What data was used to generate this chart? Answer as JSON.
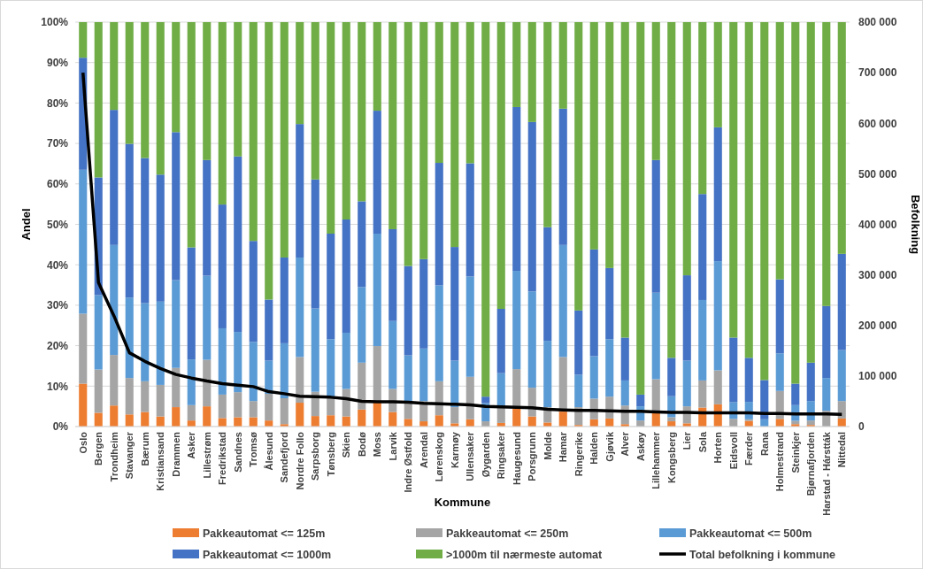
{
  "chart_data": {
    "type": "bar",
    "stacked": true,
    "xlabel": "Kommune",
    "ylabel": "Andel",
    "y2label": "Befolkning",
    "grid": "y",
    "legend": "bottom",
    "marker": "none",
    "line_style": "solid",
    "categories": [
      "Oslo",
      "Bergen",
      "Trondheim",
      "Stavanger",
      "Bærum",
      "Kristiansand",
      "Drammen",
      "Asker",
      "Lillestrøm",
      "Fredrikstad",
      "Sandnes",
      "Tromsø",
      "Ålesund",
      "Sandefjord",
      "Nordre Follo",
      "Sarpsborg",
      "Tønsberg",
      "Skien",
      "Bodø",
      "Moss",
      "Larvik",
      "Indre Østfold",
      "Arendal",
      "Lørenskog",
      "Karmøy",
      "Ullensaker",
      "Øygarden",
      "Ringsaker",
      "Haugesund",
      "Porsgrunn",
      "Molde",
      "Hamar",
      "Ringerike",
      "Halden",
      "Gjøvik",
      "Alver",
      "Askøy",
      "Lillehammer",
      "Kongsberg",
      "Lier",
      "Sola",
      "Horten",
      "Eidsvoll",
      "Færder",
      "Rana",
      "Holmestrand",
      "Steinkjer",
      "Bjørnafjorden",
      "Harstad - Hárstták",
      "Nittedal"
    ],
    "ylim": [
      0,
      100
    ],
    "yticks": [
      {
        "value": 0,
        "label": "0%"
      },
      {
        "value": 10,
        "label": "10%"
      },
      {
        "value": 20,
        "label": "20%"
      },
      {
        "value": 30,
        "label": "30%"
      },
      {
        "value": 40,
        "label": "40%"
      },
      {
        "value": 50,
        "label": "50%"
      },
      {
        "value": 60,
        "label": "60%"
      },
      {
        "value": 70,
        "label": "70%"
      },
      {
        "value": 80,
        "label": "80%"
      },
      {
        "value": 90,
        "label": "90%"
      },
      {
        "value": 100,
        "label": "100%"
      }
    ],
    "y2lim": [
      0,
      800000
    ],
    "y2ticks": [
      {
        "value": 0,
        "label": "0"
      },
      {
        "value": 100000,
        "label": "100 000"
      },
      {
        "value": 200000,
        "label": "200 000"
      },
      {
        "value": 300000,
        "label": "300 000"
      },
      {
        "value": 400000,
        "label": "400 000"
      },
      {
        "value": 500000,
        "label": "500 000"
      },
      {
        "value": 600000,
        "label": "600 000"
      },
      {
        "value": 700000,
        "label": "700 000"
      },
      {
        "value": 800000,
        "label": "800 000"
      }
    ],
    "series": [
      {
        "name": "Pakkeautomat <= 125m",
        "color": "#ed7d31",
        "values": [
          10.6,
          3.4,
          5.2,
          3,
          3.6,
          2.5,
          4.8,
          1.5,
          5,
          2.1,
          2.3,
          2.3,
          1.5,
          0.6,
          5.9,
          2.6,
          2.8,
          2.5,
          4.2,
          5.9,
          3.6,
          1.9,
          1.3,
          2.8,
          0.8,
          1.8,
          null,
          0.9,
          4.4,
          2.5,
          1,
          3.7,
          0.4,
          1.8,
          2,
          0.6,
          0,
          3.4,
          1.3,
          0.8,
          4.7,
          5.5,
          0,
          1.4,
          0,
          1.9,
          0.6,
          0.4,
          0,
          2
        ]
      },
      {
        "name": "Pakkeautomat <= 250m",
        "color": "#a5a5a5",
        "values": [
          17.3,
          10.7,
          12.5,
          9,
          7.6,
          7.8,
          9.7,
          3.8,
          11.5,
          5.8,
          6.2,
          4,
          6.6,
          6.4,
          11.3,
          6,
          4.2,
          6.8,
          11.6,
          14,
          5.7,
          4.4,
          5,
          8.4,
          4,
          10.5,
          1.3,
          4.1,
          9.8,
          7.1,
          3.8,
          13.5,
          4.4,
          5.1,
          5.4,
          4.6,
          1.5,
          8.3,
          1,
          4.2,
          6.7,
          8.4,
          1.9,
          0.4,
          0,
          6.9,
          0.8,
          1.1,
          3.9,
          4.3
        ]
      },
      {
        "name": "Pakkeautomat <= 500m",
        "color": "#5b9bd5",
        "values": [
          35.6,
          18.4,
          27.2,
          19.9,
          19.3,
          20.6,
          21.7,
          11.3,
          20.8,
          16.4,
          14.9,
          14.6,
          8.2,
          13.6,
          24.6,
          20.6,
          14.6,
          13.9,
          18.7,
          27.8,
          16.8,
          11.3,
          13,
          23.7,
          11.5,
          24.8,
          4.5,
          8.2,
          24.3,
          23.8,
          16.4,
          27.7,
          8,
          10.5,
          14.2,
          6.2,
          3.5,
          21.4,
          5.2,
          11.3,
          19.9,
          27,
          4.1,
          4.3,
          1.8,
          9.3,
          3.9,
          4.8,
          8.1,
          12.6
        ]
      },
      {
        "name": "Pakkeautomat <= 1000m",
        "color": "#4472c4",
        "values": [
          27.7,
          29.1,
          33.4,
          38,
          35.9,
          31.4,
          36.6,
          27.7,
          28.6,
          30.6,
          43.4,
          25,
          15.1,
          21.2,
          33,
          31.9,
          26.1,
          28,
          21.2,
          30.4,
          22.7,
          22.1,
          22.1,
          30.3,
          28.1,
          28,
          1.6,
          15.9,
          40.5,
          41.9,
          28.1,
          33.7,
          15.9,
          26.4,
          17.6,
          10.6,
          2.9,
          32.8,
          9.5,
          21.1,
          26.2,
          33.1,
          16,
          10.9,
          9.7,
          18.3,
          5.3,
          9.5,
          17.8,
          23.8
        ]
      },
      {
        "name": ">1000m til nærmeste automat",
        "color": "#70ad47",
        "values": [
          8.8,
          38.4,
          21.7,
          30.1,
          33.6,
          37.7,
          27.2,
          55.7,
          34.1,
          45.1,
          33.2,
          54.1,
          68.6,
          58.2,
          25.2,
          38.9,
          52.3,
          48.8,
          44.3,
          21.9,
          51.2,
          60.3,
          58.6,
          34.8,
          55.6,
          34.9,
          92.6,
          70.9,
          21,
          24.7,
          50.7,
          21.4,
          71.3,
          56.2,
          60.8,
          78,
          92.1,
          34.1,
          83,
          62.6,
          42.5,
          26,
          78,
          83,
          88.5,
          63.6,
          89.4,
          84.2,
          70.2,
          57.3
        ]
      },
      {
        "name": "Total befolkning i kommune",
        "type": "line",
        "axis": "y2",
        "color": "#000000",
        "values": [
          700000,
          285000,
          219000,
          146000,
          129000,
          115000,
          103000,
          96000,
          90000,
          85000,
          82000,
          79000,
          69000,
          65000,
          60000,
          59000,
          58000,
          55000,
          50000,
          49000,
          49000,
          48000,
          46000,
          45000,
          44000,
          43000,
          40000,
          39000,
          38000,
          37000,
          34000,
          33000,
          32000,
          32000,
          31000,
          30000,
          30000,
          29000,
          28000,
          28000,
          27000,
          27000,
          27000,
          27000,
          26000,
          26000,
          25000,
          25000,
          25000,
          24000
        ]
      }
    ]
  }
}
